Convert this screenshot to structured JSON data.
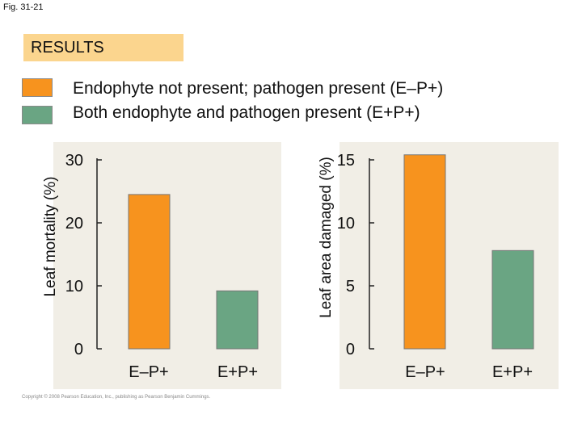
{
  "fig_label": "Fig. 31-21",
  "results_label": "RESULTS",
  "legend": [
    {
      "label": "Endophyte not present; pathogen present (E–P+)",
      "color": "#f7931e"
    },
    {
      "label": "Both endophyte and pathogen present (E+P+)",
      "color": "#6aa583"
    }
  ],
  "copyright": "Copyright © 2008 Pearson Education, Inc., publishing as Pearson Benjamin Cummings.",
  "colors": {
    "orange": "#f7931e",
    "green": "#6aa583",
    "panel": "#f1eee6"
  },
  "chart_data": [
    {
      "type": "bar",
      "categories": [
        "E–P+",
        "E+P+"
      ],
      "values": [
        24.5,
        9.2
      ],
      "colors": [
        "#f7931e",
        "#6aa583"
      ],
      "ylabel": "Leaf mortality (%)",
      "ylim": [
        0,
        30
      ],
      "yticks": [
        0,
        10,
        20,
        30
      ]
    },
    {
      "type": "bar",
      "categories": [
        "E–P+",
        "E+P+"
      ],
      "values": [
        15.4,
        7.8
      ],
      "colors": [
        "#f7931e",
        "#6aa583"
      ],
      "ylabel": "Leaf area damaged (%)",
      "ylim": [
        0,
        15
      ],
      "yticks": [
        0,
        5,
        10,
        15
      ]
    }
  ]
}
